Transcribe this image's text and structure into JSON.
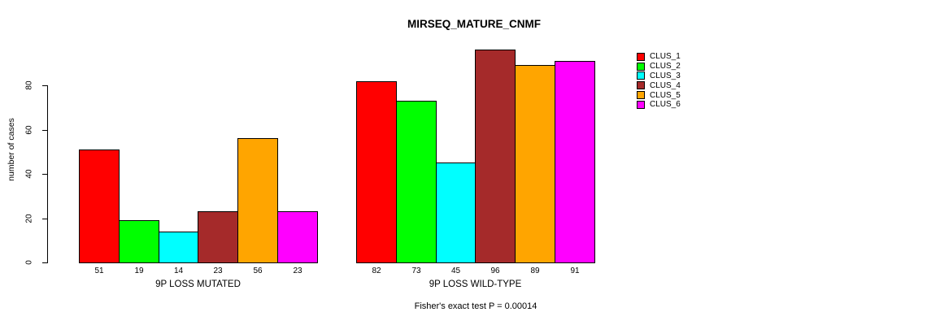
{
  "title": "MIRSEQ_MATURE_CNMF",
  "footer": "Fisher's exact test P = 0.00014",
  "chart_data": {
    "type": "bar",
    "title": "MIRSEQ_MATURE_CNMF",
    "xlabel": "",
    "ylabel": "number of cases",
    "ylim": [
      0,
      80
    ],
    "yticks": [
      0,
      20,
      40,
      60,
      80
    ],
    "grid": false,
    "legend_position": "top-right",
    "series": [
      {
        "name": "CLUS_1",
        "color": "#FF0000"
      },
      {
        "name": "CLUS_2",
        "color": "#00FF00"
      },
      {
        "name": "CLUS_3",
        "color": "#00FFFF"
      },
      {
        "name": "CLUS_4",
        "color": "#A52A2A"
      },
      {
        "name": "CLUS_5",
        "color": "#FFA500"
      },
      {
        "name": "CLUS_6",
        "color": "#FF00FF"
      }
    ],
    "groups": [
      {
        "label": "9P LOSS MUTATED",
        "values": [
          51,
          19,
          14,
          23,
          56,
          23
        ]
      },
      {
        "label": "9P LOSS WILD-TYPE",
        "values": [
          82,
          73,
          45,
          96,
          89,
          91
        ]
      }
    ],
    "annotation": "Fisher's exact test P = 0.00014"
  }
}
